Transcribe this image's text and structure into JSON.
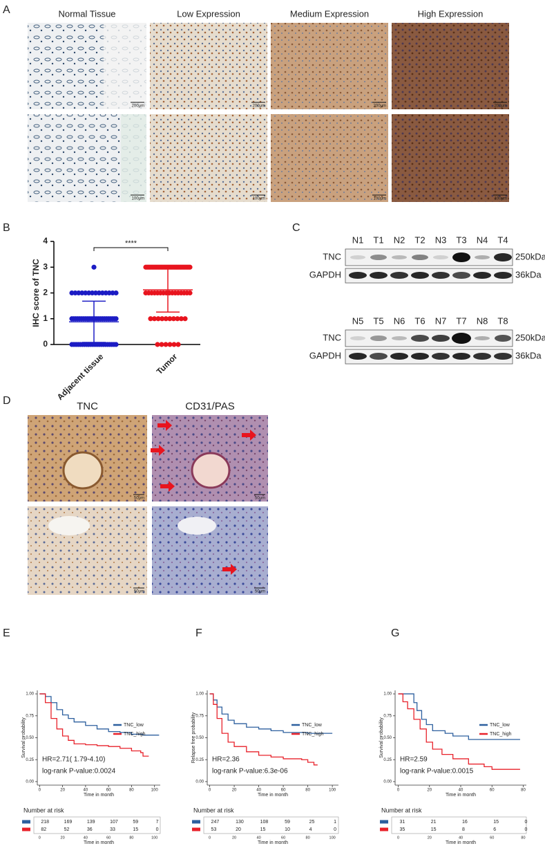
{
  "panel_labels": [
    "A",
    "B",
    "C",
    "D",
    "E",
    "F",
    "G"
  ],
  "ihc_images": {
    "columns": [
      "Normal Tissue",
      "Low Expression",
      "Medium Expression",
      "High Expression"
    ],
    "scale_bars": [
      [
        "200μm",
        "200μm",
        "200μm",
        "200μm"
      ],
      [
        "100μm",
        "100μm",
        "100μm",
        "100μm"
      ]
    ]
  },
  "western_blot": {
    "blots": [
      {
        "lanes": [
          "N1",
          "T1",
          "N2",
          "T2",
          "N3",
          "T3",
          "N4",
          "T4"
        ]
      },
      {
        "lanes": [
          "N5",
          "T5",
          "N6",
          "T6",
          "N7",
          "T7",
          "N8",
          "T8"
        ]
      }
    ],
    "rows": [
      "TNC",
      "GAPDH"
    ],
    "sizes": [
      "250kDa",
      "36kDa"
    ]
  },
  "vm_images": {
    "columns": [
      "TNC",
      "CD31/PAS"
    ],
    "scale_bars": [
      [
        "50μm",
        "50μm"
      ],
      [
        "50μm",
        "50μm"
      ]
    ]
  },
  "chart_data": [
    {
      "type": "dot",
      "ylabel": "IHC score of TNC",
      "categories": [
        "Adjacent tissue",
        "Tumor"
      ],
      "colors": [
        "#1c1cc4",
        "#e8141e"
      ],
      "values": [
        [
          0,
          0,
          0,
          0,
          0,
          0,
          0,
          0,
          0,
          0,
          0,
          0,
          0,
          0,
          0,
          0,
          0,
          0,
          0,
          0,
          0,
          0,
          1,
          1,
          1,
          1,
          1,
          1,
          1,
          1,
          1,
          1,
          1,
          1,
          1,
          1,
          1,
          1,
          1,
          1,
          1,
          1,
          1,
          1,
          1,
          1,
          2,
          2,
          2,
          2,
          2,
          2,
          2,
          2,
          2,
          2,
          2,
          2,
          2,
          2,
          3
        ],
        [
          0,
          0,
          0,
          0,
          0,
          0,
          1,
          1,
          1,
          1,
          1,
          1,
          1,
          1,
          1,
          1,
          2,
          2,
          2,
          2,
          2,
          2,
          2,
          2,
          2,
          2,
          2,
          2,
          2,
          2,
          2,
          2,
          3,
          3,
          3,
          3,
          3,
          3,
          3,
          3,
          3,
          3,
          3,
          3,
          3,
          3,
          3,
          3,
          3,
          3,
          3,
          3,
          3,
          3,
          3,
          3,
          3,
          3,
          3,
          3,
          3,
          3,
          3,
          3,
          3,
          3,
          3
        ]
      ],
      "mean": [
        0.88,
        2.12
      ],
      "sd": [
        0.8,
        0.86
      ],
      "ylim": [
        0,
        4
      ],
      "yticks": [
        0,
        1,
        2,
        3,
        4
      ],
      "annotation": "****"
    },
    {
      "type": "km",
      "ylabel": "Survival probability",
      "xlabel": "Time in month",
      "xlim": [
        -2,
        105
      ],
      "ylim": [
        -0.04,
        1.04
      ],
      "xticks": [
        0,
        20,
        40,
        60,
        80,
        100
      ],
      "yticks": [
        {
          "value": 0,
          "label": "0.00"
        },
        {
          "value": 0.25,
          "label": "0.25"
        },
        {
          "value": 0.5,
          "label": "0.50"
        },
        {
          "value": 0.75,
          "label": "0.75"
        },
        {
          "value": 1,
          "label": "1.00"
        }
      ],
      "series": [
        {
          "name": "TNC_low",
          "color": "#2c5f9e",
          "x": [
            0,
            5,
            10,
            15,
            20,
            25,
            30,
            40,
            50,
            60,
            70,
            80,
            90,
            100,
            104
          ],
          "values": [
            1,
            0.97,
            0.9,
            0.82,
            0.76,
            0.72,
            0.68,
            0.64,
            0.6,
            0.57,
            0.56,
            0.54,
            0.53,
            0.53,
            0.53
          ]
        },
        {
          "name": "TNC_high",
          "color": "#e8212a",
          "x": [
            0,
            5,
            10,
            15,
            20,
            25,
            30,
            40,
            50,
            60,
            70,
            80,
            88,
            90,
            95
          ],
          "values": [
            1,
            0.9,
            0.72,
            0.6,
            0.52,
            0.47,
            0.43,
            0.42,
            0.41,
            0.4,
            0.38,
            0.35,
            0.33,
            0.29,
            0.29
          ]
        }
      ],
      "annotations": [
        "HR=2.71( 1.79-4.10)",
        "log-rank P-value:0.0024"
      ],
      "risk_table": {
        "title": "Number at risk",
        "xlabel": "Time in month",
        "x": [
          0,
          20,
          40,
          60,
          80,
          100
        ],
        "rows": [
          [
            218,
            169,
            139,
            107,
            59,
            7
          ],
          [
            82,
            52,
            36,
            33,
            15,
            0
          ]
        ]
      }
    },
    {
      "type": "km",
      "ylabel": "Relapse free probability",
      "xlabel": "Time in month",
      "xlim": [
        -2,
        105
      ],
      "ylim": [
        -0.04,
        1.04
      ],
      "xticks": [
        0,
        20,
        40,
        60,
        80,
        100
      ],
      "yticks": [
        {
          "value": 0,
          "label": "0.00"
        },
        {
          "value": 0.25,
          "label": "0.25"
        },
        {
          "value": 0.5,
          "label": "0.50"
        },
        {
          "value": 0.75,
          "label": "0.75"
        },
        {
          "value": 1,
          "label": "1.00"
        }
      ],
      "series": [
        {
          "name": "TNC_low",
          "color": "#2c5f9e",
          "x": [
            0,
            3,
            6,
            10,
            15,
            20,
            30,
            40,
            50,
            60,
            80,
            100
          ],
          "values": [
            1,
            0.93,
            0.85,
            0.77,
            0.7,
            0.66,
            0.62,
            0.6,
            0.58,
            0.56,
            0.55,
            0.55
          ]
        },
        {
          "name": "TNC_high",
          "color": "#e8212a",
          "x": [
            0,
            3,
            6,
            10,
            15,
            20,
            30,
            40,
            50,
            60,
            75,
            80,
            85,
            88
          ],
          "values": [
            1,
            0.88,
            0.72,
            0.55,
            0.45,
            0.4,
            0.34,
            0.3,
            0.28,
            0.26,
            0.25,
            0.22,
            0.19,
            0.19
          ]
        }
      ],
      "annotations": [
        "HR=2.36",
        "log-rank P-value:6.3e-06"
      ],
      "risk_table": {
        "title": "Number at risk",
        "xlabel": "Time in month",
        "x": [
          0,
          20,
          40,
          60,
          80,
          100
        ],
        "rows": [
          [
            247,
            130,
            108,
            59,
            25,
            1
          ],
          [
            53,
            20,
            15,
            10,
            4,
            0
          ]
        ]
      }
    },
    {
      "type": "km",
      "ylabel": "Survival probability",
      "xlabel": "Time in month",
      "xlim": [
        -2,
        82
      ],
      "ylim": [
        -0.04,
        1.04
      ],
      "xticks": [
        0,
        20,
        40,
        60,
        80
      ],
      "yticks": [
        {
          "value": 0,
          "label": "0.00"
        },
        {
          "value": 0.25,
          "label": "0.25"
        },
        {
          "value": 0.5,
          "label": "0.50"
        },
        {
          "value": 0.75,
          "label": "0.75"
        },
        {
          "value": 1,
          "label": "1.00"
        }
      ],
      "series": [
        {
          "name": "TNC_low",
          "color": "#2c5f9e",
          "x": [
            0,
            8,
            10,
            12,
            15,
            18,
            22,
            30,
            35,
            45,
            60,
            78
          ],
          "values": [
            1,
            1,
            0.9,
            0.81,
            0.71,
            0.65,
            0.58,
            0.55,
            0.52,
            0.48,
            0.48,
            0.48
          ]
        },
        {
          "name": "TNC_high",
          "color": "#e8212a",
          "x": [
            0,
            3,
            6,
            10,
            14,
            18,
            22,
            28,
            35,
            45,
            55,
            60,
            78
          ],
          "values": [
            1,
            0.91,
            0.83,
            0.71,
            0.6,
            0.45,
            0.37,
            0.31,
            0.26,
            0.2,
            0.17,
            0.14,
            0.14
          ]
        }
      ],
      "annotations": [
        "HR=2.59",
        "log-rank P-value:0.0015"
      ],
      "risk_table": {
        "title": "Number at risk",
        "xlabel": "Time in month",
        "x": [
          0,
          20,
          40,
          60,
          80
        ],
        "rows": [
          [
            31,
            21,
            16,
            15,
            0
          ],
          [
            35,
            15,
            8,
            6,
            0
          ]
        ]
      }
    }
  ]
}
